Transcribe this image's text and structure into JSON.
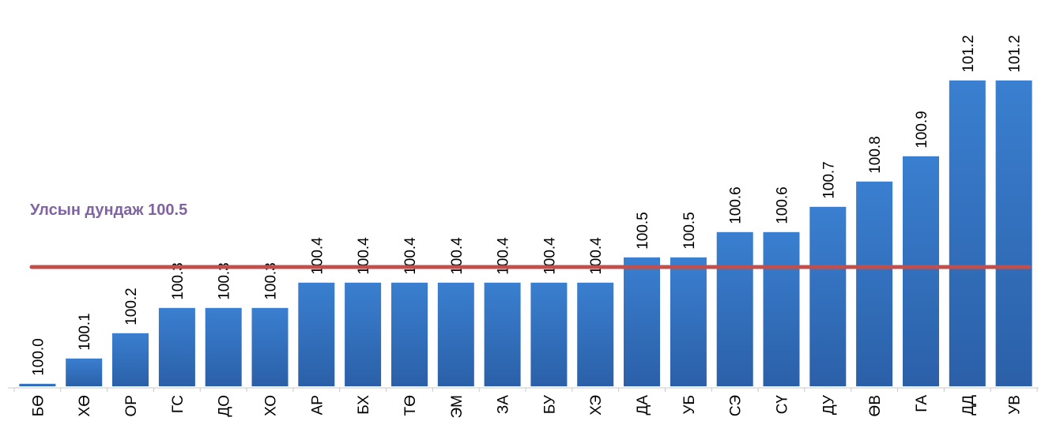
{
  "chart_data": {
    "type": "bar",
    "categories": [
      "БӨ",
      "ХӨ",
      "ОР",
      "ГС",
      "ДО",
      "ХО",
      "АР",
      "БХ",
      "ТӨ",
      "ЭМ",
      "ЗА",
      "БУ",
      "ХЭ",
      "ДА",
      "УБ",
      "СЭ",
      "СҮ",
      "ДУ",
      "ӨВ",
      "ГА",
      "ДД",
      "УВ"
    ],
    "values": [
      100.0,
      100.1,
      100.2,
      100.3,
      100.3,
      100.3,
      100.4,
      100.4,
      100.4,
      100.4,
      100.4,
      100.4,
      100.4,
      100.5,
      100.5,
      100.6,
      100.6,
      100.7,
      100.8,
      100.9,
      101.2,
      101.2
    ],
    "labels": [
      "100.0",
      "100.1",
      "100.2",
      "100.3",
      "100.3",
      "100.3",
      "100.4",
      "100.4",
      "100.4",
      "100.4",
      "100.4",
      "100.4",
      "100.4",
      "100.5",
      "100.5",
      "100.6",
      "100.6",
      "100.7",
      "100.8",
      "100.9",
      "101.2",
      "101.2"
    ],
    "reference_line": {
      "label": "Улсын дундаж 100.5",
      "value": 100.5,
      "color": "#c0504d",
      "label_color": "#8064a2"
    },
    "bar_color_top": "#3a7fd0",
    "bar_color_bottom": "#2b60a8",
    "title": "",
    "xlabel": "",
    "ylabel": "",
    "grid": false,
    "legend": "none"
  }
}
